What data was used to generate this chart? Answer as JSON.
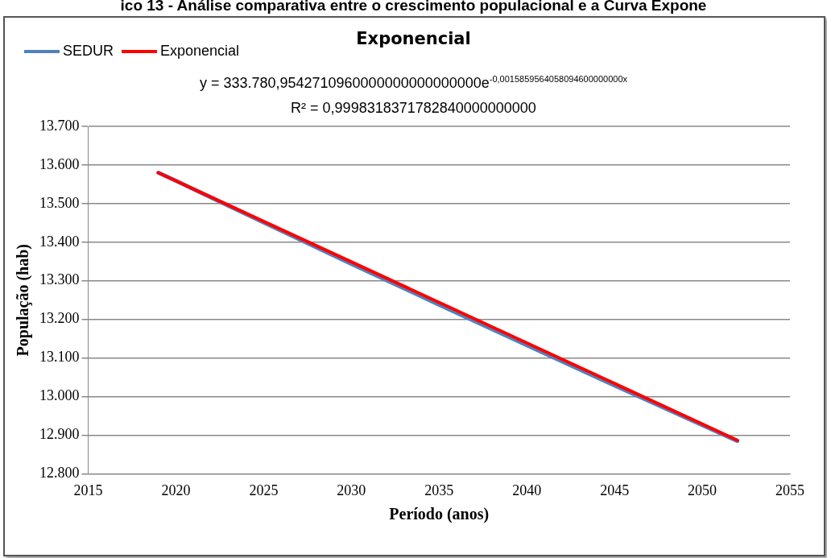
{
  "chart_data": {
    "type": "line",
    "title": "Exponencial",
    "xlabel": "Período (anos)",
    "ylabel": "População (hab)",
    "annotations": [
      "ico 13 - Análise comparativa entre o crescimento populacional e a Curva Expone",
      "y = 333.780,9542710960000000000000000e$^{-0,0015859564058094600000000x}$",
      "R² = 0,9998318371782840000000000"
    ],
    "x": [
      2019,
      2020,
      2025,
      2030,
      2035,
      2040,
      2045,
      2050,
      2052
    ],
    "series": [
      {
        "name": "SEDUR",
        "color": "#4f81bd",
        "values": [
          13580,
          13559,
          13451,
          13344,
          13238,
          13133,
          13029,
          12926,
          12885
        ]
      },
      {
        "name": "Exponencial",
        "type": "line",
        "color": "#ff0000",
        "x": [
          2019,
          2052
        ],
        "values": [
          13580,
          12887
        ]
      }
    ],
    "xlim": [
      2015,
      2055
    ],
    "xticks": [
      {
        "value": 2015,
        "label": "2015"
      },
      {
        "value": 2020,
        "label": "2020"
      },
      {
        "value": 2025,
        "label": "2025"
      },
      {
        "value": 2030,
        "label": "2030"
      },
      {
        "value": 2035,
        "label": "2035"
      },
      {
        "value": 2040,
        "label": "2040"
      },
      {
        "value": 2045,
        "label": "2045"
      },
      {
        "value": 2050,
        "label": "2050"
      },
      {
        "value": 2055,
        "label": "2055"
      }
    ],
    "ylim": [
      12800,
      13700
    ],
    "yticks": [
      {
        "value": 12800,
        "label": "12.800"
      },
      {
        "value": 12900,
        "label": "12.900"
      },
      {
        "value": 13000,
        "label": "13.000"
      },
      {
        "value": 13100,
        "label": "13.100"
      },
      {
        "value": 13200,
        "label": "13.200"
      },
      {
        "value": 13300,
        "label": "13.300"
      },
      {
        "value": 13400,
        "label": "13.400"
      },
      {
        "value": 13500,
        "label": "13.500"
      },
      {
        "value": 13600,
        "label": "13.600"
      },
      {
        "value": 13700,
        "label": "13.700"
      }
    ],
    "grid": "y",
    "legend": "top left",
    "marker": "none",
    "line_style": "solid"
  }
}
